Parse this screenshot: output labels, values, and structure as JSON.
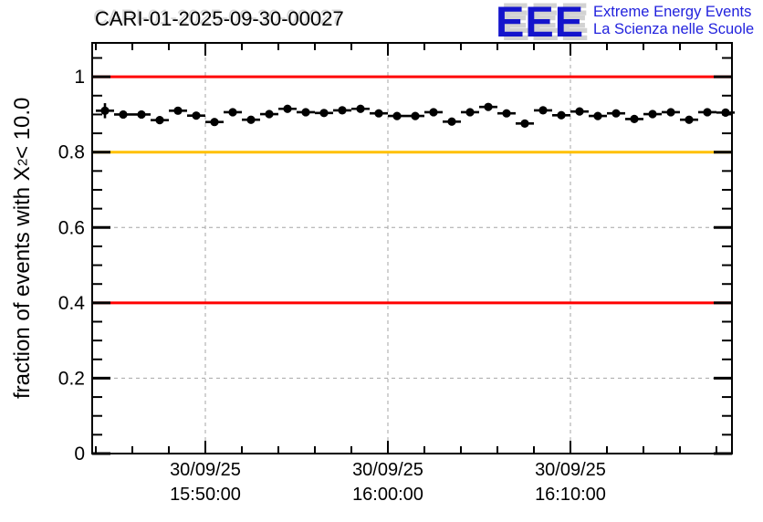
{
  "header": {
    "title": "CARI-01-2025-09-30-00027",
    "logo": {
      "text": "EEE",
      "tagline1": "Extreme Energy Events",
      "tagline2": "La Scienza nelle Scuole",
      "color": "#1414cc"
    }
  },
  "chart_data": {
    "type": "scatter",
    "title": "CARI-01-2025-09-30-00027",
    "xlabel": "",
    "ylabel_parts": {
      "prefix": "fraction of events with X",
      "sup": "2",
      "suffix": " < 10.0"
    },
    "x_axis": {
      "date": "30/09/25",
      "start": "15:43:48",
      "end": "16:18:51",
      "major_ticks": [
        "15:50:00",
        "16:00:00",
        "16:10:00"
      ],
      "tick_label_lines": [
        [
          "30/09/25",
          "15:50:00"
        ],
        [
          "30/09/25",
          "16:00:00"
        ],
        [
          "30/09/25",
          "16:10:00"
        ]
      ],
      "minor_tick_interval_s": 120,
      "major_tick_interval_s": 600
    },
    "y_axis": {
      "min": 0,
      "max": 1.09,
      "major_ticks": [
        0,
        0.2,
        0.4,
        0.6,
        0.8,
        1.0
      ],
      "labels": [
        "0",
        "0.2",
        "0.4",
        "0.6",
        "0.8",
        "1"
      ],
      "minor_tick_step": 0.05
    },
    "grid": {
      "show": true,
      "color": "#a6a6a6",
      "dash": "4,4"
    },
    "reference_lines": [
      {
        "y": 1.0,
        "color": "#ff0000"
      },
      {
        "y": 0.8,
        "color": "#ffc000"
      },
      {
        "y": 0.4,
        "color": "#ff0000"
      }
    ],
    "series": [
      {
        "name": "fraction of events with chi2 < 10.0",
        "marker": "filled-circle",
        "color": "#000000",
        "x_error_s": 30,
        "y_error": 0.01,
        "points": [
          {
            "t": "15:44:30",
            "y": 0.91,
            "ey": 0.02
          },
          {
            "t": "15:45:30",
            "y": 0.9
          },
          {
            "t": "15:46:30",
            "y": 0.9
          },
          {
            "t": "15:47:30",
            "y": 0.885
          },
          {
            "t": "15:48:30",
            "y": 0.91
          },
          {
            "t": "15:49:30",
            "y": 0.897
          },
          {
            "t": "15:50:30",
            "y": 0.88
          },
          {
            "t": "15:51:30",
            "y": 0.906
          },
          {
            "t": "15:52:30",
            "y": 0.886
          },
          {
            "t": "15:53:30",
            "y": 0.901
          },
          {
            "t": "15:54:30",
            "y": 0.915
          },
          {
            "t": "15:55:30",
            "y": 0.906
          },
          {
            "t": "15:56:30",
            "y": 0.904
          },
          {
            "t": "15:57:30",
            "y": 0.911
          },
          {
            "t": "15:58:30",
            "y": 0.915
          },
          {
            "t": "15:59:30",
            "y": 0.903
          },
          {
            "t": "16:00:30",
            "y": 0.896
          },
          {
            "t": "16:01:30",
            "y": 0.896
          },
          {
            "t": "16:02:30",
            "y": 0.906
          },
          {
            "t": "16:03:30",
            "y": 0.881
          },
          {
            "t": "16:04:30",
            "y": 0.906
          },
          {
            "t": "16:05:30",
            "y": 0.92
          },
          {
            "t": "16:06:30",
            "y": 0.903
          },
          {
            "t": "16:07:30",
            "y": 0.876
          },
          {
            "t": "16:08:30",
            "y": 0.911
          },
          {
            "t": "16:09:30",
            "y": 0.898
          },
          {
            "t": "16:10:30",
            "y": 0.908
          },
          {
            "t": "16:11:30",
            "y": 0.896
          },
          {
            "t": "16:12:30",
            "y": 0.903
          },
          {
            "t": "16:13:30",
            "y": 0.888
          },
          {
            "t": "16:14:30",
            "y": 0.901
          },
          {
            "t": "16:15:30",
            "y": 0.906
          },
          {
            "t": "16:16:30",
            "y": 0.886
          },
          {
            "t": "16:17:30",
            "y": 0.906
          },
          {
            "t": "16:18:30",
            "y": 0.905
          }
        ]
      }
    ]
  }
}
